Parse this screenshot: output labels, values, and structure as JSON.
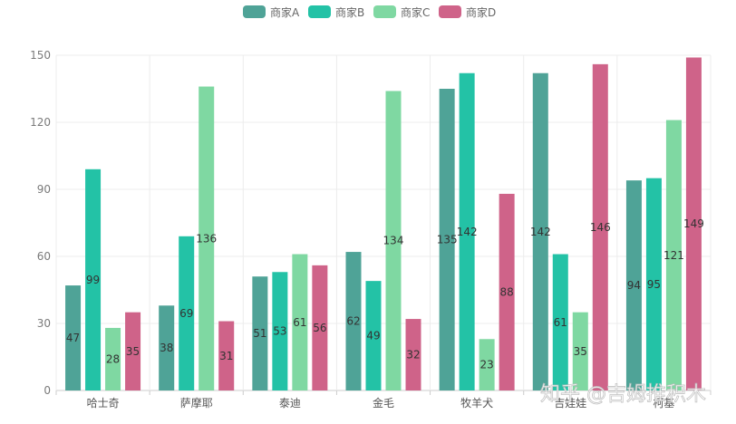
{
  "chart_data": {
    "type": "bar",
    "title": "",
    "xlabel": "",
    "ylabel": "",
    "categories": [
      "哈士奇",
      "萨摩耶",
      "泰迪",
      "金毛",
      "牧羊犬",
      "吉娃娃",
      "柯基"
    ],
    "series": [
      {
        "name": "商家A",
        "color": "#4fa397",
        "values": [
          47,
          38,
          51,
          62,
          135,
          142,
          94
        ]
      },
      {
        "name": "商家B",
        "color": "#23c2a6",
        "values": [
          99,
          69,
          53,
          49,
          142,
          61,
          95
        ]
      },
      {
        "name": "商家C",
        "color": "#7fd8a2",
        "values": [
          28,
          136,
          61,
          134,
          23,
          35,
          121
        ]
      },
      {
        "name": "商家D",
        "color": "#cf6389",
        "values": [
          35,
          31,
          56,
          32,
          88,
          146,
          149
        ]
      }
    ],
    "ylim": [
      0,
      150
    ],
    "yticks": [
      0,
      30,
      60,
      90,
      120,
      150
    ],
    "grid": true,
    "legend_position": "top-center"
  },
  "watermark": {
    "text": "知乎 @吉姆推积木"
  }
}
